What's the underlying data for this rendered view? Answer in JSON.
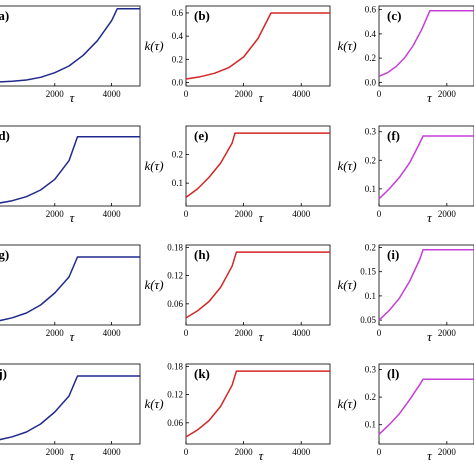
{
  "chart_data": [
    {
      "panel": "(a)",
      "type": "line",
      "color": "#1f2a8c",
      "ylabel": "",
      "xlabel": "τ",
      "xlim": [
        0,
        5000
      ],
      "xticks": [
        2000,
        4000
      ],
      "ylim": [
        0,
        0.6
      ],
      "yticks": [],
      "series": [
        {
          "x": [
            0,
            500,
            1000,
            1500,
            2000,
            2500,
            3000,
            3500,
            4000,
            4200,
            5000
          ],
          "y": [
            0.03,
            0.036,
            0.045,
            0.065,
            0.1,
            0.15,
            0.23,
            0.34,
            0.49,
            0.58,
            0.58
          ]
        }
      ]
    },
    {
      "panel": "(b)",
      "type": "line",
      "color": "#d32626",
      "ylabel": "k(τ)",
      "xlabel": "τ",
      "xlim": [
        0,
        5000
      ],
      "xticks": [
        0,
        2000,
        4000
      ],
      "ylim": [
        -0.03,
        0.66
      ],
      "yticks": [
        0.0,
        0.2,
        0.4,
        0.6
      ],
      "series": [
        {
          "x": [
            0,
            500,
            1000,
            1500,
            2000,
            2500,
            2950,
            5000
          ],
          "y": [
            0.03,
            0.05,
            0.08,
            0.13,
            0.22,
            0.38,
            0.6,
            0.6
          ]
        }
      ]
    },
    {
      "panel": "(c)",
      "type": "line",
      "color": "#c43fd6",
      "ylabel": "k(τ)",
      "xlabel": "τ",
      "xlim": [
        0,
        2800
      ],
      "xticks": [
        0,
        2000
      ],
      "ylim": [
        -0.03,
        0.63
      ],
      "yticks": [
        0.0,
        0.2,
        0.4,
        0.6
      ],
      "series": [
        {
          "x": [
            0,
            250,
            500,
            750,
            1000,
            1250,
            1500,
            2800
          ],
          "y": [
            0.05,
            0.08,
            0.13,
            0.2,
            0.3,
            0.43,
            0.59,
            0.59
          ]
        }
      ]
    },
    {
      "panel": "(d)",
      "type": "line",
      "color": "#1f2a8c",
      "ylabel": "",
      "xlabel": "τ",
      "xlim": [
        0,
        5000
      ],
      "xticks": [
        2000,
        4000
      ],
      "ylim": [
        0,
        0.3
      ],
      "yticks": [],
      "series": [
        {
          "x": [
            0,
            500,
            1000,
            1500,
            2000,
            2500,
            2800,
            5000
          ],
          "y": [
            0.01,
            0.02,
            0.035,
            0.06,
            0.1,
            0.17,
            0.26,
            0.26
          ]
        }
      ]
    },
    {
      "panel": "(e)",
      "type": "line",
      "color": "#d32626",
      "ylabel": "k(τ)",
      "xlabel": "τ",
      "xlim": [
        0,
        5000
      ],
      "xticks": [
        0,
        2000,
        4000
      ],
      "ylim": [
        0.02,
        0.3
      ],
      "yticks": [
        0.1,
        0.2
      ],
      "series": [
        {
          "x": [
            0,
            400,
            800,
            1200,
            1600,
            1700,
            5000
          ],
          "y": [
            0.05,
            0.08,
            0.12,
            0.17,
            0.24,
            0.275,
            0.275
          ]
        }
      ]
    },
    {
      "panel": "(f)",
      "type": "line",
      "color": "#c43fd6",
      "ylabel": "k(τ)",
      "xlabel": "τ",
      "xlim": [
        0,
        2800
      ],
      "xticks": [
        0,
        2000
      ],
      "ylim": [
        0.04,
        0.32
      ],
      "yticks": [
        0.1,
        0.2,
        0.3
      ],
      "series": [
        {
          "x": [
            0,
            300,
            600,
            900,
            1200,
            1300,
            2800
          ],
          "y": [
            0.065,
            0.1,
            0.14,
            0.19,
            0.26,
            0.285,
            0.285
          ]
        }
      ]
    },
    {
      "panel": "(g)",
      "type": "line",
      "color": "#1f2a8c",
      "ylabel": "",
      "xlabel": "τ",
      "xlim": [
        0,
        5000
      ],
      "xticks": [
        2000,
        4000
      ],
      "ylim": [
        0,
        0.2
      ],
      "yticks": [],
      "series": [
        {
          "x": [
            0,
            500,
            1000,
            1500,
            2000,
            2500,
            2800,
            5000
          ],
          "y": [
            0.01,
            0.018,
            0.03,
            0.05,
            0.08,
            0.12,
            0.17,
            0.17
          ]
        }
      ]
    },
    {
      "panel": "(h)",
      "type": "line",
      "color": "#d32626",
      "ylabel": "k(τ)",
      "xlabel": "τ",
      "xlim": [
        0,
        5000
      ],
      "xticks": [
        0,
        2000,
        4000
      ],
      "ylim": [
        0.015,
        0.185
      ],
      "yticks": [
        0.06,
        0.12,
        0.18
      ],
      "series": [
        {
          "x": [
            0,
            400,
            800,
            1200,
            1600,
            1750,
            5000
          ],
          "y": [
            0.03,
            0.045,
            0.065,
            0.095,
            0.14,
            0.17,
            0.17
          ]
        }
      ]
    },
    {
      "panel": "(i)",
      "type": "line",
      "color": "#c43fd6",
      "ylabel": "k(τ)",
      "xlabel": "τ",
      "xlim": [
        0,
        2800
      ],
      "xticks": [
        0,
        2000
      ],
      "ylim": [
        0.04,
        0.205
      ],
      "yticks": [
        0.05,
        0.1,
        0.15,
        0.2
      ],
      "series": [
        {
          "x": [
            0,
            300,
            600,
            900,
            1200,
            1300,
            2800
          ],
          "y": [
            0.05,
            0.07,
            0.095,
            0.13,
            0.175,
            0.195,
            0.195
          ]
        }
      ]
    },
    {
      "panel": "(j)",
      "type": "line",
      "color": "#1f2a8c",
      "ylabel": "",
      "xlabel": "τ",
      "xlim": [
        0,
        5000
      ],
      "xticks": [
        2000,
        4000
      ],
      "ylim": [
        0,
        0.2
      ],
      "yticks": [],
      "series": [
        {
          "x": [
            0,
            500,
            1000,
            1500,
            2000,
            2500,
            2800,
            5000
          ],
          "y": [
            0.01,
            0.018,
            0.03,
            0.05,
            0.08,
            0.12,
            0.17,
            0.17
          ]
        }
      ]
    },
    {
      "panel": "(k)",
      "type": "line",
      "color": "#d32626",
      "ylabel": "k(τ)",
      "xlabel": "τ",
      "xlim": [
        0,
        5000
      ],
      "xticks": [
        0,
        2000,
        4000
      ],
      "ylim": [
        0.015,
        0.185
      ],
      "yticks": [
        0.06,
        0.12,
        0.18
      ],
      "series": [
        {
          "x": [
            0,
            400,
            800,
            1200,
            1600,
            1750,
            5000
          ],
          "y": [
            0.03,
            0.045,
            0.065,
            0.095,
            0.14,
            0.17,
            0.17
          ]
        }
      ]
    },
    {
      "panel": "(l)",
      "type": "line",
      "color": "#c43fd6",
      "ylabel": "k(τ)",
      "xlabel": "τ",
      "xlim": [
        0,
        2800
      ],
      "xticks": [
        0,
        2000
      ],
      "ylim": [
        0.03,
        0.32
      ],
      "yticks": [
        0.1,
        0.2,
        0.3
      ],
      "series": [
        {
          "x": [
            0,
            300,
            600,
            900,
            1200,
            1300,
            2800
          ],
          "y": [
            0.065,
            0.1,
            0.14,
            0.19,
            0.245,
            0.265,
            0.265
          ]
        }
      ]
    }
  ]
}
